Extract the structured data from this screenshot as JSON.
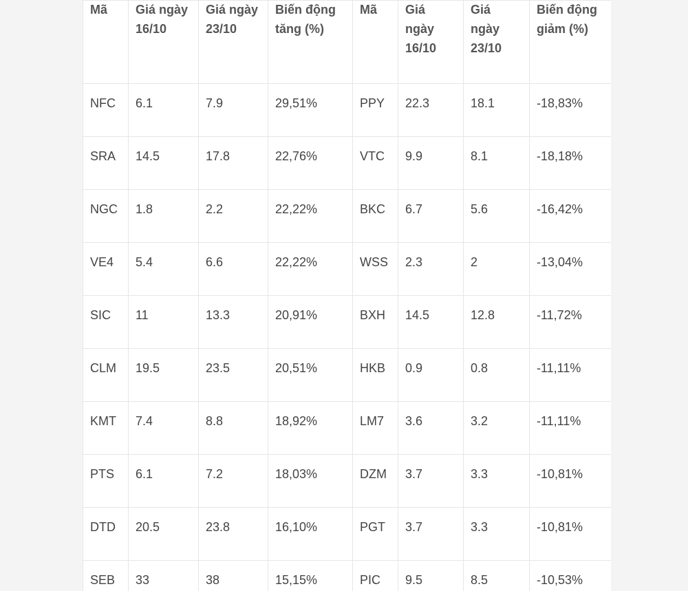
{
  "table": {
    "headers": [
      "Mã",
      "Giá ngày 16/10",
      "Giá ngày 23/10",
      "Biến động tăng (%)",
      "Mã",
      "Giá ngày 16/10",
      "Giá ngày 23/10",
      "Biến động giảm (%)"
    ],
    "rows": [
      [
        "NFC",
        "6.1",
        "7.9",
        "29,51%",
        "PPY",
        "22.3",
        "18.1",
        "-18,83%"
      ],
      [
        "SRA",
        "14.5",
        "17.8",
        "22,76%",
        "VTC",
        "9.9",
        "8.1",
        "-18,18%"
      ],
      [
        "NGC",
        "1.8",
        "2.2",
        "22,22%",
        "BKC",
        "6.7",
        "5.6",
        "-16,42%"
      ],
      [
        "VE4",
        "5.4",
        "6.6",
        "22,22%",
        "WSS",
        "2.3",
        "2",
        "-13,04%"
      ],
      [
        "SIC",
        "11",
        "13.3",
        "20,91%",
        "BXH",
        "14.5",
        "12.8",
        "-11,72%"
      ],
      [
        "CLM",
        "19.5",
        "23.5",
        "20,51%",
        "HKB",
        "0.9",
        "0.8",
        "-11,11%"
      ],
      [
        "KMT",
        "7.4",
        "8.8",
        "18,92%",
        "LM7",
        "3.6",
        "3.2",
        "-11,11%"
      ],
      [
        "PTS",
        "6.1",
        "7.2",
        "18,03%",
        "DZM",
        "3.7",
        "3.3",
        "-10,81%"
      ],
      [
        "DTD",
        "20.5",
        "23.8",
        "16,10%",
        "PGT",
        "3.7",
        "3.3",
        "-10,81%"
      ],
      [
        "SEB",
        "33",
        "38",
        "15,15%",
        "PIC",
        "9.5",
        "8.5",
        "-10,53%"
      ]
    ]
  }
}
